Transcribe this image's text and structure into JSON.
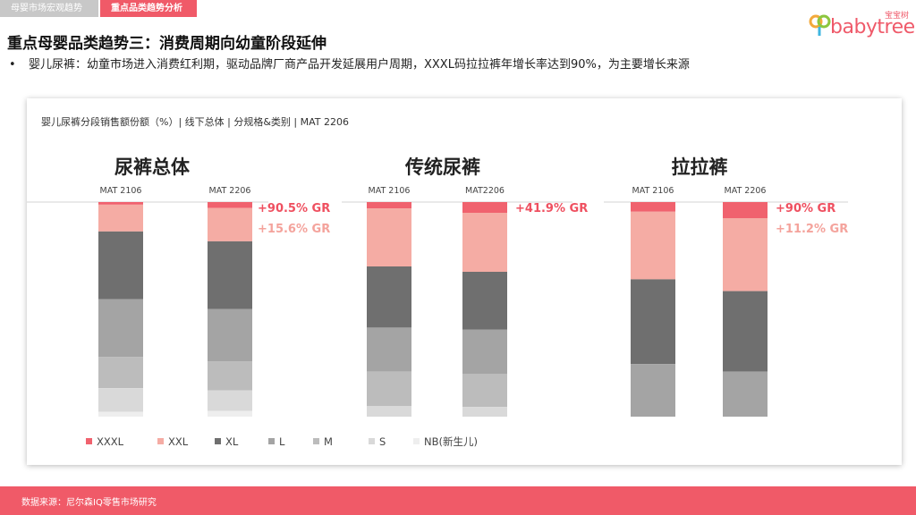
{
  "tabs": [
    {
      "label": "母婴市场宏观趋势"
    },
    {
      "label": "重点品类趋势分析"
    }
  ],
  "logo": {
    "brand": "babytree",
    "brand_cn": "宝宝树"
  },
  "page_title": "重点母婴品类趋势三：消费周期向幼童阶段延伸",
  "bullet": {
    "marker": "•",
    "text": "婴儿尿裤：幼童市场进入消费红利期，驱动品牌厂商产品开发延展用户周期，XXXL码拉拉裤年增长率达到90%，为主要增长来源"
  },
  "footer": {
    "source": "数据来源：尼尔森IQ零售市场研究"
  },
  "colors": {
    "accent": "#f05a68",
    "XXXL": "#f0626e",
    "XXL": "#f5aca4",
    "XL": "#6f6f6f",
    "L": "#a4a4a4",
    "M": "#bcbcbc",
    "S": "#d9d9d9",
    "NB": "#eeeeee"
  },
  "chart_data": {
    "type": "bar",
    "stacked": true,
    "title": "婴儿尿裤分段销售额份额（%）| 线下总体 | 分规格&类别 | MAT 2206",
    "series_order": [
      "XXXL",
      "XXL",
      "XL",
      "L",
      "M",
      "S",
      "NB"
    ],
    "legend": {
      "placement": "bottom-left",
      "items": [
        {
          "key": "XXXL",
          "label": "XXXL"
        },
        {
          "key": "XXL",
          "label": "XXL"
        },
        {
          "key": "XL",
          "label": "XL"
        },
        {
          "key": "L",
          "label": "L"
        },
        {
          "key": "M",
          "label": "M"
        },
        {
          "key": "S",
          "label": "S"
        },
        {
          "key": "NB",
          "label": "NB(新生儿)"
        }
      ]
    },
    "ylim": [
      0,
      100
    ],
    "groups": [
      {
        "title": "尿裤总体",
        "bars": [
          {
            "label": "MAT 2106",
            "values": {
              "XXXL": 1.2,
              "XXL": 12.5,
              "XL": 31.5,
              "L": 27,
              "M": 14.5,
              "S": 11,
              "NB": 2.3
            }
          },
          {
            "label": "MAT 2206",
            "values": {
              "XXXL": 2.8,
              "XXL": 15.5,
              "XL": 31.5,
              "L": 24.5,
              "M": 13.5,
              "S": 9.5,
              "NB": 2.7
            }
          }
        ],
        "annotations": [
          "+90.5% GR",
          "+15.6% GR"
        ]
      },
      {
        "title": "传统尿裤",
        "bars": [
          {
            "label": "MAT 2106",
            "values": {
              "XXXL": 3,
              "XXL": 27,
              "XL": 28.5,
              "L": 20.5,
              "M": 16,
              "S": 5,
              "NB": 0
            }
          },
          {
            "label": "MAT2206",
            "values": {
              "XXXL": 5,
              "XXL": 27.5,
              "XL": 27,
              "L": 20.5,
              "M": 15.5,
              "S": 4.5,
              "NB": 0
            }
          }
        ],
        "annotations": [
          "+41.9% GR"
        ]
      },
      {
        "title": "拉拉裤",
        "bars": [
          {
            "label": "MAT 2106",
            "values": {
              "XXXL": 4.5,
              "XXL": 31.5,
              "XL": 39.5,
              "L": 24.5,
              "M": 0,
              "S": 0,
              "NB": 0
            }
          },
          {
            "label": "MAT 2206",
            "values": {
              "XXXL": 7.5,
              "XXL": 34,
              "XL": 37.5,
              "L": 21,
              "M": 0,
              "S": 0,
              "NB": 0
            }
          }
        ],
        "annotations": [
          "+90% GR",
          "+11.2% GR"
        ]
      }
    ]
  }
}
